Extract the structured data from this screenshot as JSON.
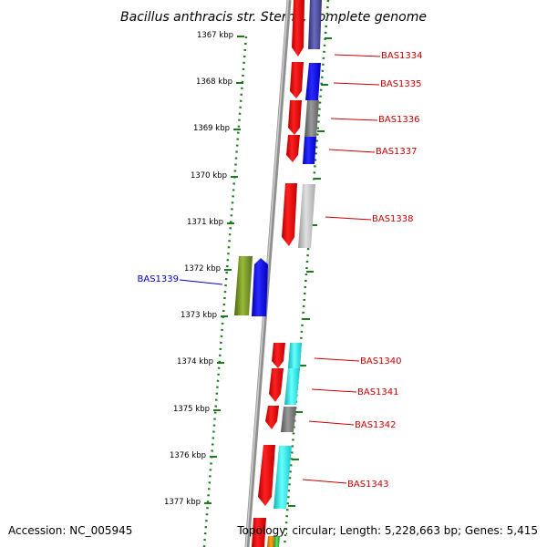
{
  "title": "Bacillus anthracis str. Sterne, complete genome",
  "accession_text": "Accession: NC_005945",
  "topology_text": "Topology: circular; Length: 5,228,663 bp; Genes: 5,415",
  "colors": {
    "backbone": "#8a8a8a",
    "dotted_track": "#1e7a1e",
    "forward_label": "#cc0000",
    "reverse_label": "#0000cc",
    "gene_red": "#ee0000",
    "gene_blue": "#0000ee",
    "gene_cyan": "#22dddd",
    "gene_gray": "#777777",
    "gene_lightgray": "#bbbbbb",
    "gene_slate": "#4a4a9a",
    "gene_olive": "#6a8a1a"
  },
  "ticks": [
    {
      "label": "1367 kbp"
    },
    {
      "label": "1368 kbp"
    },
    {
      "label": "1369 kbp"
    },
    {
      "label": "1370 kbp"
    },
    {
      "label": "1371 kbp"
    },
    {
      "label": "1372 kbp"
    },
    {
      "label": "1373 kbp"
    },
    {
      "label": "1374 kbp"
    },
    {
      "label": "1375 kbp"
    },
    {
      "label": "1376 kbp"
    },
    {
      "label": "1377 kbp"
    }
  ],
  "gene_labels": [
    {
      "name": "BAS1334",
      "strand": "forward"
    },
    {
      "name": "BAS1335",
      "strand": "forward"
    },
    {
      "name": "BAS1336",
      "strand": "forward"
    },
    {
      "name": "BAS1337",
      "strand": "forward"
    },
    {
      "name": "BAS1338",
      "strand": "forward"
    },
    {
      "name": "BAS1339",
      "strand": "reverse"
    },
    {
      "name": "BAS1340",
      "strand": "forward"
    },
    {
      "name": "BAS1341",
      "strand": "forward"
    },
    {
      "name": "BAS1342",
      "strand": "forward"
    },
    {
      "name": "BAS1343",
      "strand": "forward"
    }
  ]
}
